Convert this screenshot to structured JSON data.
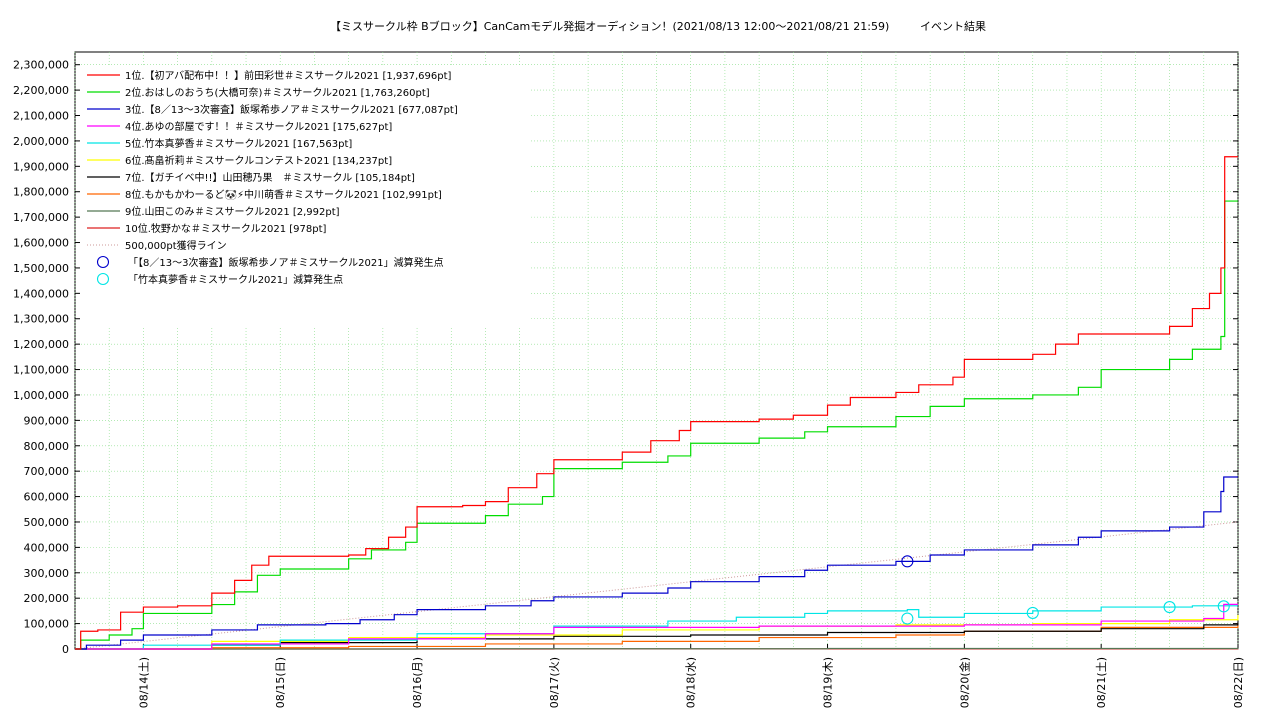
{
  "chart_data": {
    "type": "line",
    "title": "【ミスサークル枠 Bブロック】CanCamモデル発掘オーディション！(2021/08/13 12:00～2021/08/21 21:59)",
    "subtitle": "イベント結果",
    "ylim": [
      0,
      2350000
    ],
    "yticks": [
      "0",
      "100,000",
      "200,000",
      "300,000",
      "400,000",
      "500,000",
      "600,000",
      "700,000",
      "800,000",
      "900,000",
      "1,000,000",
      "1,100,000",
      "1,200,000",
      "1,300,000",
      "1,400,000",
      "1,500,000",
      "1,600,000",
      "1,700,000",
      "1,800,000",
      "1,900,000",
      "2,000,000",
      "2,100,000",
      "2,200,000",
      "2,300,000"
    ],
    "xlim": [
      "2021-08-13 12:00",
      "2021-08-22 00:00"
    ],
    "xticks": [
      "08/14(土)",
      "08/15(日)",
      "08/16(月)",
      "08/17(火)",
      "08/18(水)",
      "08/19(木)",
      "08/20(金)",
      "08/21(土)",
      "08/22(日)"
    ],
    "grid": true,
    "legend_position": "top-left",
    "series": [
      {
        "name": "1位.【初アバ配布中！！】前田彩世＃ミスサークル2021 [1,937,696pt]",
        "color": "#ff0000",
        "points": [
          [
            "2021-08-13 12:00",
            0
          ],
          [
            "2021-08-13 13:00",
            70000
          ],
          [
            "2021-08-13 16:00",
            75000
          ],
          [
            "2021-08-13 20:00",
            145000
          ],
          [
            "2021-08-14 00:00",
            165000
          ],
          [
            "2021-08-14 06:00",
            170000
          ],
          [
            "2021-08-14 12:00",
            220000
          ],
          [
            "2021-08-14 16:00",
            270000
          ],
          [
            "2021-08-14 19:00",
            330000
          ],
          [
            "2021-08-14 22:00",
            365000
          ],
          [
            "2021-08-15 12:00",
            370000
          ],
          [
            "2021-08-15 15:00",
            395000
          ],
          [
            "2021-08-15 19:00",
            440000
          ],
          [
            "2021-08-15 22:00",
            480000
          ],
          [
            "2021-08-16 00:00",
            560000
          ],
          [
            "2021-08-16 08:00",
            565000
          ],
          [
            "2021-08-16 12:00",
            580000
          ],
          [
            "2021-08-16 16:00",
            635000
          ],
          [
            "2021-08-16 21:00",
            690000
          ],
          [
            "2021-08-17 00:00",
            745000
          ],
          [
            "2021-08-17 12:00",
            775000
          ],
          [
            "2021-08-17 17:00",
            820000
          ],
          [
            "2021-08-17 22:00",
            860000
          ],
          [
            "2021-08-18 00:00",
            895000
          ],
          [
            "2021-08-18 12:00",
            905000
          ],
          [
            "2021-08-18 18:00",
            920000
          ],
          [
            "2021-08-19 00:00",
            960000
          ],
          [
            "2021-08-19 04:00",
            990000
          ],
          [
            "2021-08-19 12:00",
            1010000
          ],
          [
            "2021-08-19 16:00",
            1040000
          ],
          [
            "2021-08-19 22:00",
            1070000
          ],
          [
            "2021-08-20 00:00",
            1140000
          ],
          [
            "2021-08-20 12:00",
            1160000
          ],
          [
            "2021-08-20 16:00",
            1200000
          ],
          [
            "2021-08-20 20:00",
            1240000
          ],
          [
            "2021-08-21 12:00",
            1270000
          ],
          [
            "2021-08-21 16:00",
            1340000
          ],
          [
            "2021-08-21 19:00",
            1400000
          ],
          [
            "2021-08-21 21:00",
            1500000
          ],
          [
            "2021-08-21 21:40",
            1937696
          ],
          [
            "2021-08-21 23:59",
            1937696
          ]
        ]
      },
      {
        "name": "2位.おはしのおうち(大橋可奈)＃ミスサークル2021 [1,763,260pt]",
        "color": "#00dd00",
        "points": [
          [
            "2021-08-13 12:00",
            0
          ],
          [
            "2021-08-13 13:00",
            35000
          ],
          [
            "2021-08-13 18:00",
            55000
          ],
          [
            "2021-08-13 22:00",
            80000
          ],
          [
            "2021-08-14 00:00",
            140000
          ],
          [
            "2021-08-14 12:00",
            175000
          ],
          [
            "2021-08-14 16:00",
            225000
          ],
          [
            "2021-08-14 20:00",
            290000
          ],
          [
            "2021-08-15 00:00",
            315000
          ],
          [
            "2021-08-15 12:00",
            355000
          ],
          [
            "2021-08-15 16:00",
            390000
          ],
          [
            "2021-08-15 22:00",
            420000
          ],
          [
            "2021-08-16 00:00",
            495000
          ],
          [
            "2021-08-16 12:00",
            525000
          ],
          [
            "2021-08-16 16:00",
            570000
          ],
          [
            "2021-08-16 22:00",
            600000
          ],
          [
            "2021-08-17 00:00",
            710000
          ],
          [
            "2021-08-17 12:00",
            735000
          ],
          [
            "2021-08-17 20:00",
            760000
          ],
          [
            "2021-08-18 00:00",
            810000
          ],
          [
            "2021-08-18 12:00",
            830000
          ],
          [
            "2021-08-18 20:00",
            855000
          ],
          [
            "2021-08-19 00:00",
            875000
          ],
          [
            "2021-08-19 12:00",
            915000
          ],
          [
            "2021-08-19 18:00",
            955000
          ],
          [
            "2021-08-20 00:00",
            985000
          ],
          [
            "2021-08-20 12:00",
            1000000
          ],
          [
            "2021-08-20 20:00",
            1030000
          ],
          [
            "2021-08-21 00:00",
            1100000
          ],
          [
            "2021-08-21 12:00",
            1140000
          ],
          [
            "2021-08-21 16:00",
            1180000
          ],
          [
            "2021-08-21 21:00",
            1230000
          ],
          [
            "2021-08-21 21:40",
            1763260
          ],
          [
            "2021-08-21 23:59",
            1763260
          ]
        ]
      },
      {
        "name": "3位.【8／13～3次審査】飯塚希歩ノア＃ミスサークル2021 [677,087pt]",
        "color": "#0000cc",
        "points": [
          [
            "2021-08-13 12:00",
            0
          ],
          [
            "2021-08-13 14:00",
            15000
          ],
          [
            "2021-08-13 20:00",
            35000
          ],
          [
            "2021-08-14 00:00",
            55000
          ],
          [
            "2021-08-14 12:00",
            75000
          ],
          [
            "2021-08-14 20:00",
            95000
          ],
          [
            "2021-08-15 08:00",
            100000
          ],
          [
            "2021-08-15 14:00",
            115000
          ],
          [
            "2021-08-15 20:00",
            135000
          ],
          [
            "2021-08-16 00:00",
            155000
          ],
          [
            "2021-08-16 12:00",
            170000
          ],
          [
            "2021-08-16 20:00",
            190000
          ],
          [
            "2021-08-17 00:00",
            205000
          ],
          [
            "2021-08-17 12:00",
            220000
          ],
          [
            "2021-08-17 20:00",
            240000
          ],
          [
            "2021-08-18 00:00",
            265000
          ],
          [
            "2021-08-18 12:00",
            285000
          ],
          [
            "2021-08-18 20:00",
            310000
          ],
          [
            "2021-08-19 00:00",
            330000
          ],
          [
            "2021-08-19 12:00",
            345000
          ],
          [
            "2021-08-19 18:00",
            370000
          ],
          [
            "2021-08-20 00:00",
            390000
          ],
          [
            "2021-08-20 12:00",
            410000
          ],
          [
            "2021-08-20 20:00",
            440000
          ],
          [
            "2021-08-21 00:00",
            465000
          ],
          [
            "2021-08-21 12:00",
            480000
          ],
          [
            "2021-08-21 18:00",
            540000
          ],
          [
            "2021-08-21 21:00",
            620000
          ],
          [
            "2021-08-21 21:30",
            677087
          ],
          [
            "2021-08-21 23:59",
            677087
          ]
        ]
      },
      {
        "name": "4位.あゆの部屋です！！＃ミスサークル2021 [175,627pt]",
        "color": "#ff00ff",
        "points": [
          [
            "2021-08-13 12:00",
            0
          ],
          [
            "2021-08-14 12:00",
            20000
          ],
          [
            "2021-08-15 12:00",
            40000
          ],
          [
            "2021-08-16 12:00",
            60000
          ],
          [
            "2021-08-17 00:00",
            85000
          ],
          [
            "2021-08-18 12:00",
            90000
          ],
          [
            "2021-08-20 00:00",
            95000
          ],
          [
            "2021-08-21 00:00",
            110000
          ],
          [
            "2021-08-21 18:00",
            120000
          ],
          [
            "2021-08-21 21:30",
            175627
          ],
          [
            "2021-08-21 23:59",
            175627
          ]
        ]
      },
      {
        "name": "5位.竹本真夢香＃ミスサークル2021 [167,563pt]",
        "color": "#00e5e5",
        "points": [
          [
            "2021-08-13 12:00",
            0
          ],
          [
            "2021-08-14 00:00",
            15000
          ],
          [
            "2021-08-15 00:00",
            35000
          ],
          [
            "2021-08-16 00:00",
            60000
          ],
          [
            "2021-08-17 00:00",
            90000
          ],
          [
            "2021-08-17 20:00",
            110000
          ],
          [
            "2021-08-18 08:00",
            125000
          ],
          [
            "2021-08-18 20:00",
            140000
          ],
          [
            "2021-08-19 00:00",
            150000
          ],
          [
            "2021-08-19 14:00",
            155000
          ],
          [
            "2021-08-19 16:00",
            125000
          ],
          [
            "2021-08-20 00:00",
            140000
          ],
          [
            "2021-08-20 12:00",
            150000
          ],
          [
            "2021-08-21 00:00",
            165000
          ],
          [
            "2021-08-21 16:00",
            170000
          ],
          [
            "2021-08-21 23:59",
            170000
          ]
        ]
      },
      {
        "name": "6位.髙畠祈莉＃ミスサークルコンテスト2021 [134,237pt]",
        "color": "#ffff00",
        "points": [
          [
            "2021-08-13 12:00",
            0
          ],
          [
            "2021-08-14 12:00",
            30000
          ],
          [
            "2021-08-15 12:00",
            45000
          ],
          [
            "2021-08-16 12:00",
            55000
          ],
          [
            "2021-08-17 12:00",
            75000
          ],
          [
            "2021-08-18 12:00",
            90000
          ],
          [
            "2021-08-19 12:00",
            95000
          ],
          [
            "2021-08-20 12:00",
            100000
          ],
          [
            "2021-08-21 12:00",
            115000
          ],
          [
            "2021-08-21 23:59",
            134237
          ]
        ]
      },
      {
        "name": "7位.【ガチイベ中!!】山田穂乃果　＃ミスサークル [105,184pt]",
        "color": "#000000",
        "points": [
          [
            "2021-08-13 12:00",
            0
          ],
          [
            "2021-08-14 12:00",
            15000
          ],
          [
            "2021-08-15 00:00",
            25000
          ],
          [
            "2021-08-16 00:00",
            40000
          ],
          [
            "2021-08-17 00:00",
            50000
          ],
          [
            "2021-08-18 00:00",
            55000
          ],
          [
            "2021-08-19 00:00",
            65000
          ],
          [
            "2021-08-20 00:00",
            70000
          ],
          [
            "2021-08-21 00:00",
            80000
          ],
          [
            "2021-08-21 18:00",
            95000
          ],
          [
            "2021-08-21 23:59",
            105184
          ]
        ]
      },
      {
        "name": "8位.もかもかわーるど🐼⚡中川萌香＃ミスサークル2021 [102,991pt]",
        "color": "#ff6600",
        "points": [
          [
            "2021-08-13 12:00",
            0
          ],
          [
            "2021-08-14 12:00",
            5000
          ],
          [
            "2021-08-15 12:00",
            10000
          ],
          [
            "2021-08-16 12:00",
            20000
          ],
          [
            "2021-08-17 12:00",
            30000
          ],
          [
            "2021-08-18 12:00",
            45000
          ],
          [
            "2021-08-19 12:00",
            55000
          ],
          [
            "2021-08-20 00:00",
            70000
          ],
          [
            "2021-08-21 00:00",
            85000
          ],
          [
            "2021-08-21 23:59",
            102991
          ]
        ]
      },
      {
        "name": "9位.山田このみ＃ミスサークル2021 [2,992pt]",
        "color": "#557755",
        "points": [
          [
            "2021-08-13 12:00",
            0
          ],
          [
            "2021-08-16 00:00",
            1000
          ],
          [
            "2021-08-19 00:00",
            2000
          ],
          [
            "2021-08-21 23:59",
            2992
          ]
        ]
      },
      {
        "name": "10位.牧野かな＃ミスサークル2021 [978pt]",
        "color": "#dd2222",
        "points": [
          [
            "2021-08-13 12:00",
            0
          ],
          [
            "2021-08-17 00:00",
            500
          ],
          [
            "2021-08-21 23:59",
            978
          ]
        ]
      }
    ],
    "reference_line": {
      "name": "500,000pt獲得ライン",
      "color": "#cc9999",
      "points": [
        [
          "2021-08-13 12:00",
          0
        ],
        [
          "2021-08-21 23:59",
          500000
        ]
      ]
    },
    "marker_series": [
      {
        "name": "「【8／13～3次審査】飯塚希歩ノア＃ミスサークル2021」減算発生点",
        "color": "#0000cc",
        "points": [
          [
            "2021-08-19 14:00",
            345000
          ]
        ]
      },
      {
        "name": "「竹本真夢香＃ミスサークル2021」減算発生点",
        "color": "#00e5e5",
        "points": [
          [
            "2021-08-19 14:00",
            120000
          ],
          [
            "2021-08-20 12:00",
            142000
          ],
          [
            "2021-08-21 12:00",
            165000
          ],
          [
            "2021-08-21 21:30",
            168000
          ]
        ]
      }
    ]
  }
}
